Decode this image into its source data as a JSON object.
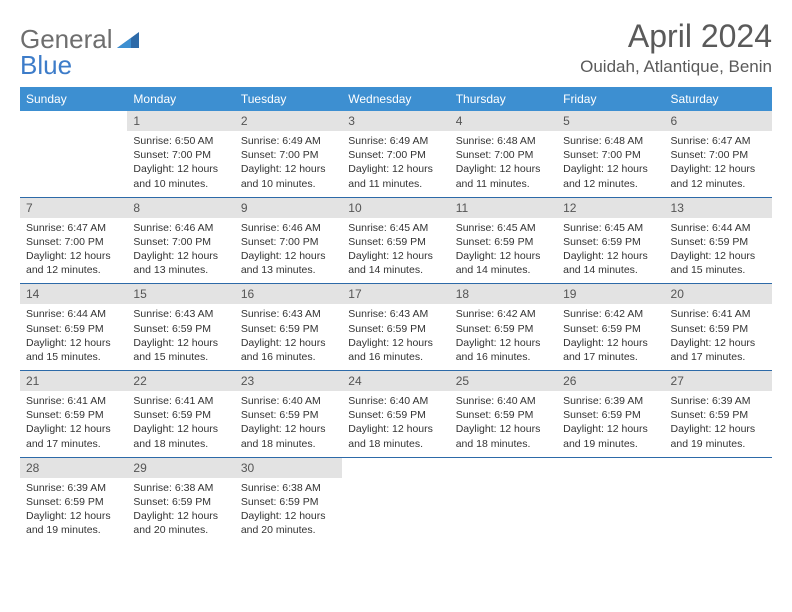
{
  "brand": {
    "part1": "General",
    "part2": "Blue"
  },
  "title": {
    "month": "April 2024",
    "location": "Ouidah, Atlantique, Benin"
  },
  "colors": {
    "header_bg": "#3d8fd1",
    "header_text": "#ffffff",
    "daynum_bg": "#e3e3e3",
    "separator": "#2d6aa8",
    "brand_grey": "#6e6e6e",
    "brand_blue": "#3d7cc9"
  },
  "dow": [
    "Sunday",
    "Monday",
    "Tuesday",
    "Wednesday",
    "Thursday",
    "Friday",
    "Saturday"
  ],
  "weeks": [
    [
      null,
      {
        "n": "1",
        "sr": "6:50 AM",
        "ss": "7:00 PM",
        "dl": "12 hours and 10 minutes."
      },
      {
        "n": "2",
        "sr": "6:49 AM",
        "ss": "7:00 PM",
        "dl": "12 hours and 10 minutes."
      },
      {
        "n": "3",
        "sr": "6:49 AM",
        "ss": "7:00 PM",
        "dl": "12 hours and 11 minutes."
      },
      {
        "n": "4",
        "sr": "6:48 AM",
        "ss": "7:00 PM",
        "dl": "12 hours and 11 minutes."
      },
      {
        "n": "5",
        "sr": "6:48 AM",
        "ss": "7:00 PM",
        "dl": "12 hours and 12 minutes."
      },
      {
        "n": "6",
        "sr": "6:47 AM",
        "ss": "7:00 PM",
        "dl": "12 hours and 12 minutes."
      }
    ],
    [
      {
        "n": "7",
        "sr": "6:47 AM",
        "ss": "7:00 PM",
        "dl": "12 hours and 12 minutes."
      },
      {
        "n": "8",
        "sr": "6:46 AM",
        "ss": "7:00 PM",
        "dl": "12 hours and 13 minutes."
      },
      {
        "n": "9",
        "sr": "6:46 AM",
        "ss": "7:00 PM",
        "dl": "12 hours and 13 minutes."
      },
      {
        "n": "10",
        "sr": "6:45 AM",
        "ss": "6:59 PM",
        "dl": "12 hours and 14 minutes."
      },
      {
        "n": "11",
        "sr": "6:45 AM",
        "ss": "6:59 PM",
        "dl": "12 hours and 14 minutes."
      },
      {
        "n": "12",
        "sr": "6:45 AM",
        "ss": "6:59 PM",
        "dl": "12 hours and 14 minutes."
      },
      {
        "n": "13",
        "sr": "6:44 AM",
        "ss": "6:59 PM",
        "dl": "12 hours and 15 minutes."
      }
    ],
    [
      {
        "n": "14",
        "sr": "6:44 AM",
        "ss": "6:59 PM",
        "dl": "12 hours and 15 minutes."
      },
      {
        "n": "15",
        "sr": "6:43 AM",
        "ss": "6:59 PM",
        "dl": "12 hours and 15 minutes."
      },
      {
        "n": "16",
        "sr": "6:43 AM",
        "ss": "6:59 PM",
        "dl": "12 hours and 16 minutes."
      },
      {
        "n": "17",
        "sr": "6:43 AM",
        "ss": "6:59 PM",
        "dl": "12 hours and 16 minutes."
      },
      {
        "n": "18",
        "sr": "6:42 AM",
        "ss": "6:59 PM",
        "dl": "12 hours and 16 minutes."
      },
      {
        "n": "19",
        "sr": "6:42 AM",
        "ss": "6:59 PM",
        "dl": "12 hours and 17 minutes."
      },
      {
        "n": "20",
        "sr": "6:41 AM",
        "ss": "6:59 PM",
        "dl": "12 hours and 17 minutes."
      }
    ],
    [
      {
        "n": "21",
        "sr": "6:41 AM",
        "ss": "6:59 PM",
        "dl": "12 hours and 17 minutes."
      },
      {
        "n": "22",
        "sr": "6:41 AM",
        "ss": "6:59 PM",
        "dl": "12 hours and 18 minutes."
      },
      {
        "n": "23",
        "sr": "6:40 AM",
        "ss": "6:59 PM",
        "dl": "12 hours and 18 minutes."
      },
      {
        "n": "24",
        "sr": "6:40 AM",
        "ss": "6:59 PM",
        "dl": "12 hours and 18 minutes."
      },
      {
        "n": "25",
        "sr": "6:40 AM",
        "ss": "6:59 PM",
        "dl": "12 hours and 18 minutes."
      },
      {
        "n": "26",
        "sr": "6:39 AM",
        "ss": "6:59 PM",
        "dl": "12 hours and 19 minutes."
      },
      {
        "n": "27",
        "sr": "6:39 AM",
        "ss": "6:59 PM",
        "dl": "12 hours and 19 minutes."
      }
    ],
    [
      {
        "n": "28",
        "sr": "6:39 AM",
        "ss": "6:59 PM",
        "dl": "12 hours and 19 minutes."
      },
      {
        "n": "29",
        "sr": "6:38 AM",
        "ss": "6:59 PM",
        "dl": "12 hours and 20 minutes."
      },
      {
        "n": "30",
        "sr": "6:38 AM",
        "ss": "6:59 PM",
        "dl": "12 hours and 20 minutes."
      },
      null,
      null,
      null,
      null
    ]
  ],
  "labels": {
    "sunrise": "Sunrise:",
    "sunset": "Sunset:",
    "daylight": "Daylight:"
  }
}
